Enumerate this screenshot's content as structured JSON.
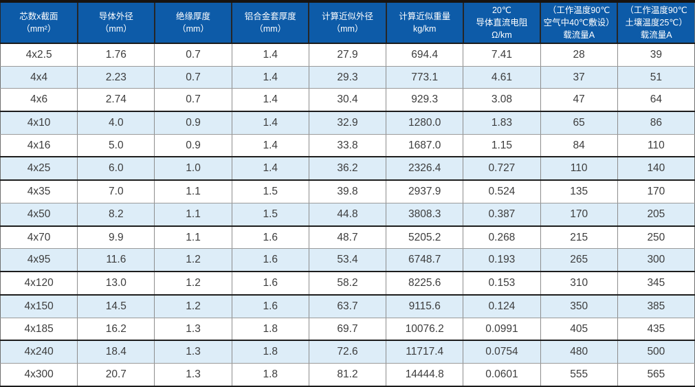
{
  "colors": {
    "header_bg": "#0d5ba8",
    "header_text": "#ffffff",
    "row_alt_bg": "#ddedf8",
    "row_bg": "#ffffff",
    "thin_line": "#9a9a9a",
    "thick_line": "#1c1c1c",
    "body_text": "#3c3c3c"
  },
  "table": {
    "columns": [
      {
        "label": "芯数x截面\n（mm²）"
      },
      {
        "label": "导体外径\n（mm）"
      },
      {
        "label": "绝缘厚度\n（mm）"
      },
      {
        "label": "铝合金套厚度\n（mm）"
      },
      {
        "label": "计算近似外径\n（mm）"
      },
      {
        "label": "计算近似重量\nkg/km"
      },
      {
        "label": "20℃\n导体直流电阻\nΩ/km"
      },
      {
        "label": "（工作温度90℃\n空气中40℃敷设）\n载流量A"
      },
      {
        "label": "（工作温度90℃\n土壤温度25℃）\n载流量A"
      }
    ],
    "rows": [
      {
        "cells": [
          "4x2.5",
          "1.76",
          "0.7",
          "1.4",
          "27.9",
          "694.4",
          "7.41",
          "28",
          "39"
        ],
        "group_end": false
      },
      {
        "cells": [
          "4x4",
          "2.23",
          "0.7",
          "1.4",
          "29.3",
          "773.1",
          "4.61",
          "37",
          "51"
        ],
        "group_end": false
      },
      {
        "cells": [
          "4x6",
          "2.74",
          "0.7",
          "1.4",
          "30.4",
          "929.3",
          "3.08",
          "47",
          "64"
        ],
        "group_end": true
      },
      {
        "cells": [
          "4x10",
          "4.0",
          "0.9",
          "1.4",
          "32.9",
          "1280.0",
          "1.83",
          "65",
          "86"
        ],
        "group_end": false
      },
      {
        "cells": [
          "4x16",
          "5.0",
          "0.9",
          "1.4",
          "33.8",
          "1687.0",
          "1.15",
          "84",
          "110"
        ],
        "group_end": true
      },
      {
        "cells": [
          "4x25",
          "6.0",
          "1.0",
          "1.4",
          "36.2",
          "2326.4",
          "0.727",
          "110",
          "140"
        ],
        "group_end": true
      },
      {
        "cells": [
          "4x35",
          "7.0",
          "1.1",
          "1.5",
          "39.8",
          "2937.9",
          "0.524",
          "135",
          "170"
        ],
        "group_end": false
      },
      {
        "cells": [
          "4x50",
          "8.2",
          "1.1",
          "1.5",
          "44.8",
          "3808.3",
          "0.387",
          "170",
          "205"
        ],
        "group_end": true
      },
      {
        "cells": [
          "4x70",
          "9.9",
          "1.1",
          "1.6",
          "48.7",
          "5205.2",
          "0.268",
          "215",
          "250"
        ],
        "group_end": false
      },
      {
        "cells": [
          "4x95",
          "11.6",
          "1.2",
          "1.6",
          "53.4",
          "6748.7",
          "0.193",
          "265",
          "300"
        ],
        "group_end": true
      },
      {
        "cells": [
          "4x120",
          "13.0",
          "1.2",
          "1.6",
          "58.2",
          "8225.6",
          "0.153",
          "310",
          "345"
        ],
        "group_end": true
      },
      {
        "cells": [
          "4x150",
          "14.5",
          "1.2",
          "1.6",
          "63.7",
          "9115.6",
          "0.124",
          "350",
          "385"
        ],
        "group_end": false
      },
      {
        "cells": [
          "4x185",
          "16.2",
          "1.3",
          "1.8",
          "69.7",
          "10076.2",
          "0.0991",
          "405",
          "435"
        ],
        "group_end": true
      },
      {
        "cells": [
          "4x240",
          "18.4",
          "1.3",
          "1.8",
          "72.6",
          "11717.4",
          "0.0754",
          "480",
          "500"
        ],
        "group_end": false
      },
      {
        "cells": [
          "4x300",
          "20.7",
          "1.3",
          "1.8",
          "81.2",
          "14444.8",
          "0.0601",
          "555",
          "565"
        ],
        "group_end": false
      }
    ]
  }
}
